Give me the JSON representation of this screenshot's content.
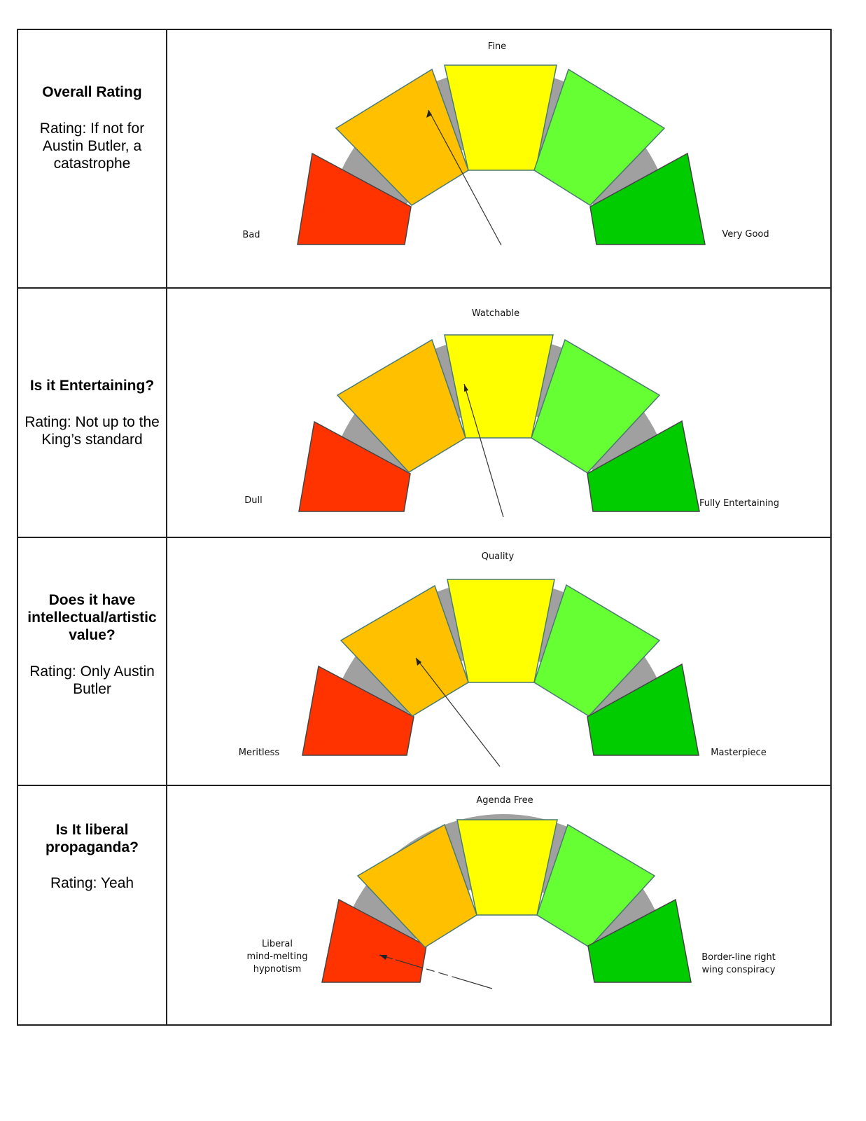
{
  "rows": [
    {
      "question": "Overall Rating",
      "rating": "Rating: If not for Austin Butler, a catastrophe",
      "gauge": {
        "top_label": "Fine",
        "left_label": "Bad",
        "right_label": "Very Good",
        "needle_segment": "orange"
      }
    },
    {
      "question": "Is it Entertaining?",
      "rating": "Rating: Not up to the King’s standard",
      "gauge": {
        "top_label": "Watchable",
        "left_label": "Dull",
        "right_label": "Fully Entertaining",
        "needle_segment": "yellow"
      }
    },
    {
      "question": "Does it have intellectual/artistic value?",
      "rating": "Rating: Only Austin Butler",
      "gauge": {
        "top_label": "Quality",
        "left_label": "Meritless",
        "right_label": "Masterpiece",
        "needle_segment": "orange"
      }
    },
    {
      "question": "Is It liberal propaganda?",
      "rating": "Rating: Yeah",
      "gauge": {
        "top_label": "Agenda Free",
        "left_label": "Liberal mind-melting hypnotism",
        "right_label": "Border-line right wing conspiracy",
        "needle_segment": "red"
      }
    }
  ],
  "colors": {
    "red": "#ff3300",
    "orange": "#ffc000",
    "yellow": "#ffff00",
    "light_green": "#66ff33",
    "green": "#00cc00",
    "arc": "#a0a0a0",
    "outline": "#4a7a70"
  }
}
